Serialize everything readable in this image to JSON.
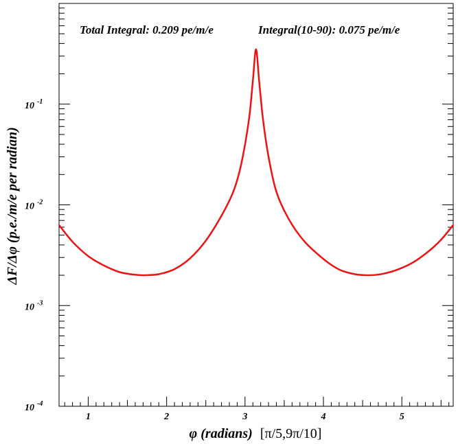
{
  "chart_data": {
    "type": "line",
    "annotations": {
      "total": "Total Integral: 0.209 pe/m/e",
      "range": "Integral(10-90): 0.075 pe/m/e"
    },
    "xlabel_italic": "φ (radians)",
    "xlabel_range": "[π/5,9π/10]",
    "ylabel": "ΔF/Δφ (p.e./m/e per radian)",
    "xlim": [
      0.6283,
      5.6549
    ],
    "ylim": [
      0.0001,
      1.0
    ],
    "yscale": "log",
    "x_ticks": [
      {
        "value": 1,
        "label": "1"
      },
      {
        "value": 2,
        "label": "2"
      },
      {
        "value": 3,
        "label": "3"
      },
      {
        "value": 4,
        "label": "4"
      },
      {
        "value": 5,
        "label": "5"
      }
    ],
    "y_ticks": [
      {
        "value": 0.0001,
        "base": "10",
        "exp": "-4"
      },
      {
        "value": 0.001,
        "base": "10",
        "exp": "-3"
      },
      {
        "value": 0.01,
        "base": "10",
        "exp": "-2"
      },
      {
        "value": 0.1,
        "base": "10",
        "exp": "-1"
      }
    ],
    "series": [
      {
        "color": "#ee1111",
        "x": [
          0.6283,
          0.8,
          1.0,
          1.2,
          1.4,
          1.6,
          1.72,
          1.9,
          2.1,
          2.3,
          2.5,
          2.7,
          2.85,
          2.95,
          3.05,
          3.1,
          3.14,
          3.18,
          3.23,
          3.3,
          3.4,
          3.55,
          3.75,
          4.0,
          4.2,
          4.4,
          4.58,
          4.75,
          4.95,
          5.15,
          5.35,
          5.5,
          5.6549
        ],
        "y": [
          0.0063,
          0.0043,
          0.0031,
          0.0025,
          0.00215,
          0.00202,
          0.002,
          0.00205,
          0.0023,
          0.00295,
          0.0044,
          0.0078,
          0.0135,
          0.025,
          0.07,
          0.17,
          0.35,
          0.17,
          0.07,
          0.03,
          0.0135,
          0.0074,
          0.0044,
          0.0029,
          0.00228,
          0.00205,
          0.002,
          0.00206,
          0.00228,
          0.0027,
          0.0035,
          0.0045,
          0.0063
        ]
      }
    ]
  }
}
